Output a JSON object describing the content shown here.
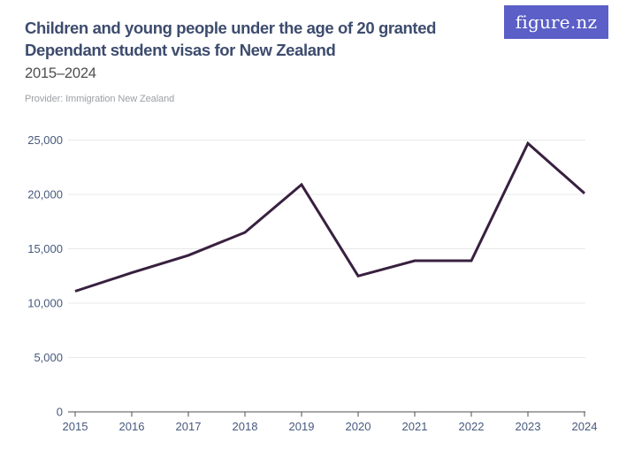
{
  "header": {
    "title": "Children and young people under the age of 20 granted Dependant student visas for New Zealand",
    "subtitle": "2015–2024",
    "provider": "Provider: Immigration New Zealand",
    "logo_text": "figure.nz"
  },
  "colors": {
    "logo_bg": "#5b5fc7",
    "logo_text": "#ffffff",
    "title": "#3d4c6e",
    "subtitle": "#4e4e4e",
    "provider": "#9da0a6",
    "axis_label": "#47597d",
    "grid_line": "#e8e8e8",
    "axis_line": "#4f4f4f",
    "data_line": "#38203f"
  },
  "chart_data": {
    "type": "line",
    "title": "Children and young people under the age of 20 granted Dependant student visas for New Zealand",
    "subtitle": "2015–2024",
    "provider": "Provider: Immigration New Zealand",
    "x": [
      2015,
      2016,
      2017,
      2018,
      2019,
      2020,
      2021,
      2022,
      2023,
      2024
    ],
    "values": [
      11100,
      12800,
      14400,
      16500,
      20900,
      12500,
      13900,
      13900,
      24700,
      20100
    ],
    "x_tick_labels": [
      "2015",
      "2016",
      "2017",
      "2018",
      "2019",
      "2020",
      "2021",
      "2022",
      "2023",
      "2024"
    ],
    "y_tick_values": [
      0,
      5000,
      10000,
      15000,
      20000,
      25000
    ],
    "y_tick_labels": [
      "0",
      "5,000",
      "10,000",
      "15,000",
      "20,000",
      "25,000"
    ],
    "xlabel": "",
    "ylabel": "",
    "ylim": [
      0,
      25000
    ],
    "grid": true,
    "legend": "none",
    "series_name": "Dependant student visas granted"
  }
}
